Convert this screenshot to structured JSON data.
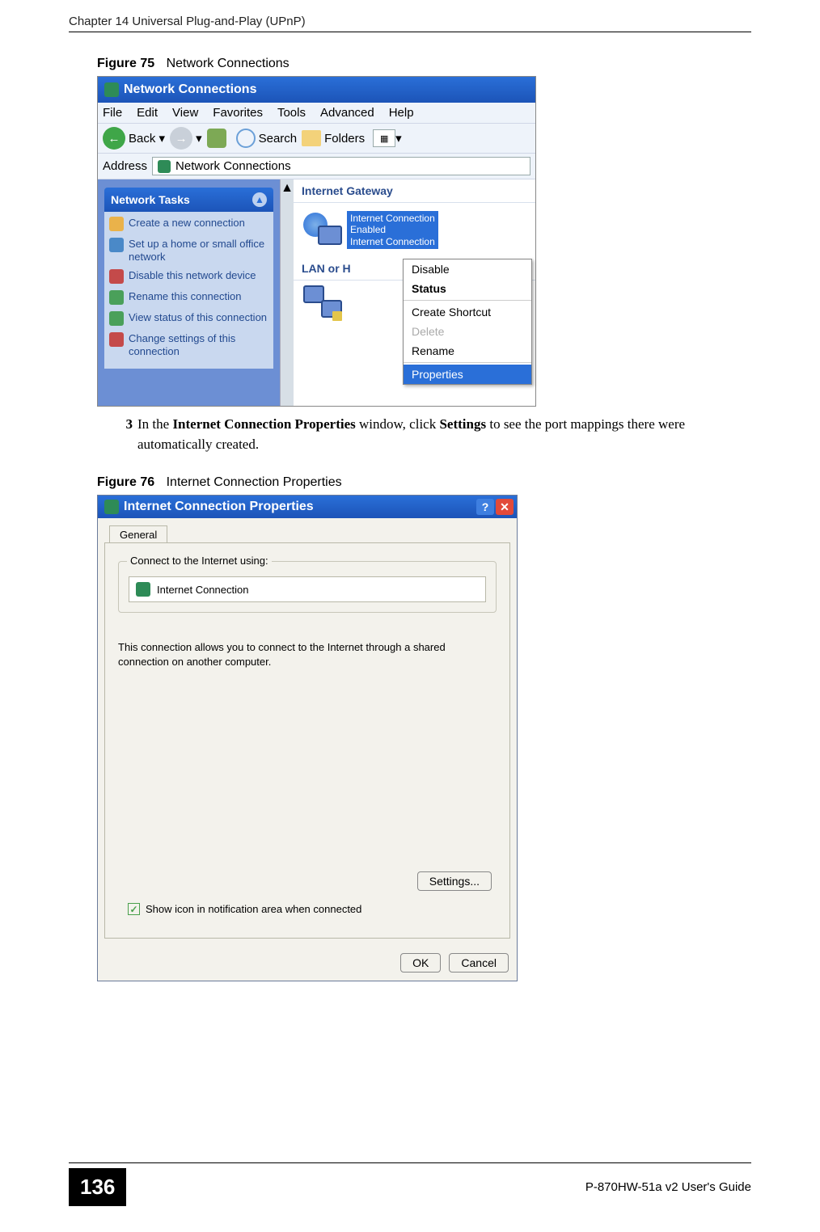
{
  "chapter_header": "Chapter 14 Universal Plug-and-Play (UPnP)",
  "fig75": {
    "label": "Figure 75",
    "title": "Network Connections"
  },
  "win75": {
    "title": "Network Connections",
    "menus": [
      "File",
      "Edit",
      "View",
      "Favorites",
      "Tools",
      "Advanced",
      "Help"
    ],
    "toolbar": {
      "back": "Back",
      "search": "Search",
      "folders": "Folders"
    },
    "address_label": "Address",
    "address_value": "Network Connections",
    "sidebar_title": "Network Tasks",
    "tasks": [
      "Create a new connection",
      "Set up a home or small office network",
      "Disable this network device",
      "Rename this connection",
      "View status of this connection",
      "Change settings of this connection"
    ],
    "group_internet": "Internet Gateway",
    "ig_item": {
      "line1": "Internet Connection",
      "line2": "Enabled",
      "line3": "Internet Connection"
    },
    "group_lan": "LAN or H",
    "context": {
      "disable": "Disable",
      "status": "Status",
      "shortcut": "Create Shortcut",
      "delete": "Delete",
      "rename": "Rename",
      "properties": "Properties"
    }
  },
  "step3": {
    "num": "3",
    "text_a": "In the ",
    "bold_a": "Internet Connection Properties",
    "text_b": " window, click ",
    "bold_b": "Settings",
    "text_c": " to see the port mappings there were automatically created."
  },
  "fig76": {
    "label": "Figure 76",
    "title": "Internet Connection Properties"
  },
  "win76": {
    "title": "Internet Connection Properties",
    "tab": "General",
    "group": "Connect to the Internet using:",
    "conn": "Internet Connection",
    "desc": "This connection allows you to connect to the Internet through a shared connection on another computer.",
    "settings": "Settings...",
    "checkbox": "Show icon in notification area when connected",
    "ok": "OK",
    "cancel": "Cancel"
  },
  "footer": {
    "page": "136",
    "guide": "P-870HW-51a v2 User's Guide"
  }
}
